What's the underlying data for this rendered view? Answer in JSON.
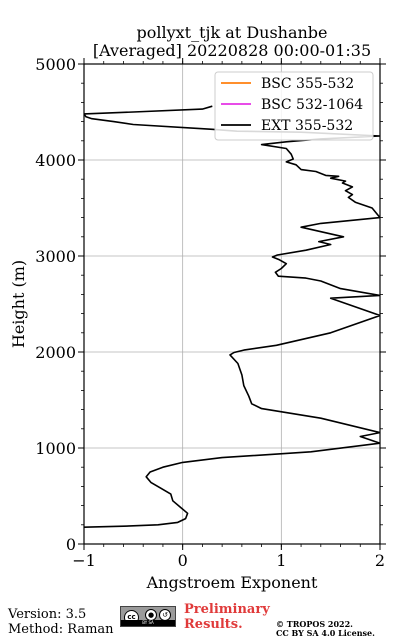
{
  "chart_data": {
    "type": "line",
    "title": "pollyxt_tjk at Dushanbe",
    "subtitle": "[Averaged] 20220828 00:00-01:35",
    "xlabel": "Angstroem Exponent",
    "ylabel": "Height (m)",
    "xlim": [
      -1,
      2
    ],
    "ylim": [
      0,
      5000
    ],
    "x_ticks": [
      "−1",
      "0",
      "1",
      "2"
    ],
    "y_ticks": [
      "0",
      "1000",
      "2000",
      "3000",
      "4000",
      "5000"
    ],
    "grid": true,
    "legend_position": "top-right",
    "series": [
      {
        "name": "BSC 355-532",
        "color": "#ff7f0e",
        "points": []
      },
      {
        "name": "BSC 532-1064",
        "color": "#e532e5",
        "points": []
      },
      {
        "name": "EXT 355-532",
        "color": "#000000",
        "points": [
          [
            -1.0,
            175
          ],
          [
            -0.6,
            185
          ],
          [
            -0.25,
            200
          ],
          [
            -0.05,
            225
          ],
          [
            0.03,
            265
          ],
          [
            0.05,
            320
          ],
          [
            -0.02,
            380
          ],
          [
            -0.1,
            450
          ],
          [
            -0.12,
            520
          ],
          [
            -0.22,
            580
          ],
          [
            -0.32,
            640
          ],
          [
            -0.37,
            700
          ],
          [
            -0.33,
            750
          ],
          [
            -0.2,
            800
          ],
          [
            0.0,
            850
          ],
          [
            0.4,
            900
          ],
          [
            1.3,
            960
          ],
          [
            2.0,
            1050
          ],
          [
            1.8,
            1120
          ],
          [
            2.0,
            1160
          ],
          [
            1.4,
            1310
          ],
          [
            0.8,
            1410
          ],
          [
            0.7,
            1460
          ],
          [
            0.67,
            1540
          ],
          [
            0.62,
            1650
          ],
          [
            0.6,
            1760
          ],
          [
            0.56,
            1880
          ],
          [
            0.48,
            1970
          ],
          [
            0.52,
            1995
          ],
          [
            0.62,
            2020
          ],
          [
            0.95,
            2070
          ],
          [
            1.5,
            2200
          ],
          [
            2.0,
            2380
          ],
          [
            1.5,
            2560
          ],
          [
            2.0,
            2590
          ],
          [
            1.6,
            2660
          ],
          [
            1.4,
            2740
          ],
          [
            1.25,
            2770
          ],
          [
            0.97,
            2790
          ],
          [
            0.94,
            2830
          ],
          [
            1.0,
            2870
          ],
          [
            1.05,
            2920
          ],
          [
            0.98,
            2960
          ],
          [
            0.91,
            2990
          ],
          [
            0.96,
            3010
          ],
          [
            1.25,
            3060
          ],
          [
            1.5,
            3120
          ],
          [
            1.38,
            3150
          ],
          [
            1.63,
            3200
          ],
          [
            1.2,
            3300
          ],
          [
            1.4,
            3340
          ],
          [
            2.0,
            3400
          ],
          [
            1.92,
            3500
          ],
          [
            1.75,
            3560
          ],
          [
            1.68,
            3610
          ],
          [
            1.72,
            3640
          ],
          [
            1.65,
            3680
          ],
          [
            1.72,
            3720
          ],
          [
            1.62,
            3760
          ],
          [
            1.65,
            3780
          ],
          [
            1.5,
            3810
          ],
          [
            1.58,
            3830
          ],
          [
            1.45,
            3840
          ],
          [
            1.35,
            3880
          ],
          [
            1.2,
            3900
          ],
          [
            1.15,
            3950
          ],
          [
            1.05,
            3980
          ],
          [
            1.12,
            4010
          ],
          [
            1.1,
            4060
          ],
          [
            1.05,
            4120
          ],
          [
            0.8,
            4160
          ],
          [
            1.05,
            4190
          ],
          [
            1.4,
            4220
          ],
          [
            1.8,
            4240
          ],
          [
            2.0,
            4250
          ],
          [
            1.2,
            4290
          ],
          [
            0.55,
            4300
          ],
          [
            0.3,
            4320
          ],
          [
            -0.5,
            4370
          ],
          [
            -0.7,
            4400
          ],
          [
            -0.92,
            4430
          ],
          [
            -0.98,
            4450
          ],
          [
            -1.0,
            4480
          ],
          [
            -0.5,
            4500
          ],
          [
            0.2,
            4530
          ],
          [
            0.3,
            4560
          ]
        ]
      }
    ]
  },
  "footer": {
    "version": "Version: 3.5",
    "method": "Method: Raman",
    "preliminary_line1": "Preliminary",
    "preliminary_line2": "Results.",
    "copyright_line1": "© TROPOS 2022.",
    "copyright_line2": "CC BY SA 4.0 License.",
    "cc_logo_text": "cc",
    "cc_logo_bar": "BY SA"
  }
}
